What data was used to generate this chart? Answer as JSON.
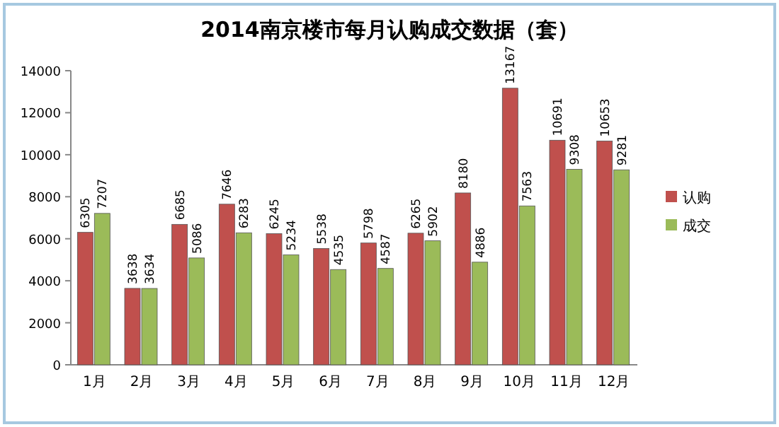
{
  "chart_data": {
    "type": "bar",
    "title": "2014南京楼市每月认购成交数据（套）",
    "categories": [
      "1月",
      "2月",
      "3月",
      "4月",
      "5月",
      "6月",
      "7月",
      "8月",
      "9月",
      "10月",
      "11月",
      "12月"
    ],
    "series": [
      {
        "name": "认购",
        "color": "#c0504d",
        "values": [
          6305,
          3638,
          6685,
          7646,
          6245,
          5538,
          5798,
          6265,
          8180,
          13167,
          10691,
          10653
        ]
      },
      {
        "name": "成交",
        "color": "#9bbb59",
        "values": [
          7207,
          3634,
          5086,
          6283,
          5234,
          4535,
          4587,
          5902,
          4886,
          7563,
          9308,
          9281
        ]
      }
    ],
    "ylim": [
      0,
      14000
    ],
    "yticks": [
      0,
      2000,
      4000,
      6000,
      8000,
      10000,
      12000,
      14000
    ],
    "data_labels": true,
    "legend": "right",
    "grid": false
  }
}
